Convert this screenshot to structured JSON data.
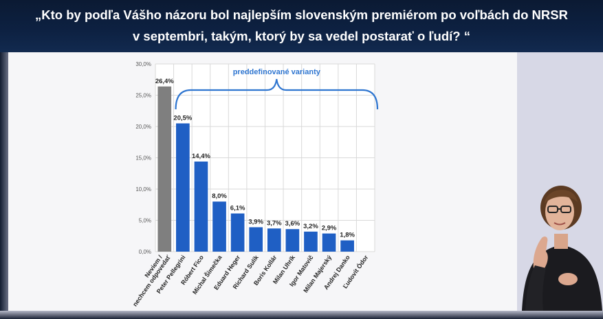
{
  "header": {
    "title_line1": "„Kto by podľa Vášho názoru bol najlepším slovenským premiérom po voľbách do NRSR",
    "title_line2": "v septembri, takým, ktorý by sa vedel postarať o ľudí? “"
  },
  "chart_data": {
    "type": "bar",
    "title": "",
    "xlabel": "",
    "ylabel": "",
    "ylim": [
      0,
      30
    ],
    "yticks": [
      "0,0%",
      "5,0%",
      "10,0%",
      "15,0%",
      "20,0%",
      "25,0%",
      "30,0%"
    ],
    "grid": true,
    "bracket_label": "preddefinované varianty",
    "categories": [
      "Neviem / nechcem odpovedať",
      "Peter Pellegrini",
      "Róbert Fico",
      "Michal Šimečka",
      "Eduard Heger",
      "Richard Sulík",
      "Boris Kollár",
      "Milan Uhrík",
      "Igor Matovič",
      "Milan Majerský",
      "Andrej Danko",
      "Ľudovít Ódor"
    ],
    "values": [
      26.4,
      20.5,
      14.4,
      8.0,
      6.1,
      3.9,
      3.7,
      3.6,
      3.2,
      2.9,
      1.8,
      null
    ],
    "data_labels": [
      "26,4%",
      "20,5%",
      "14,4%",
      "8,0%",
      "6,1%",
      "3,9%",
      "3,7%",
      "3,6%",
      "3,2%",
      "2,9%",
      "1,8%",
      ""
    ],
    "colors": {
      "undecided": "#7f7f7f",
      "candidate": "#1f5fc4",
      "bracket": "#2e75d0",
      "grid": "#d9d9d9"
    }
  },
  "interpreter": {
    "description_icon": "sign-language-interpreter"
  }
}
